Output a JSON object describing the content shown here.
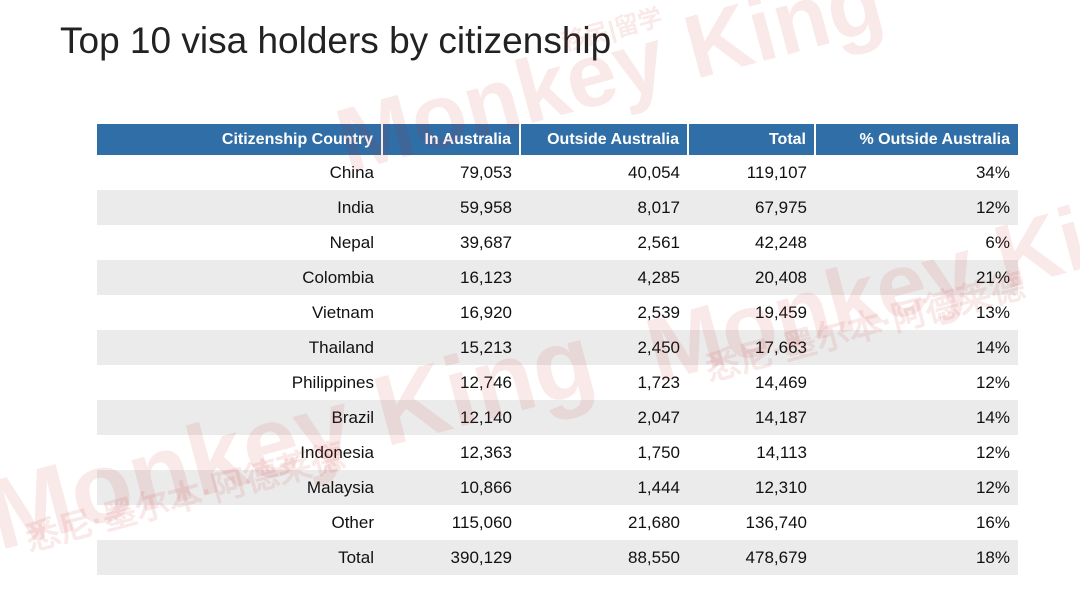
{
  "header": {
    "title": "Top 10 visa holders by citizenship"
  },
  "table": {
    "columns": [
      "Citizenship Country",
      "In Australia",
      "Outside Australia",
      "Total",
      "% Outside Australia"
    ],
    "rows": [
      [
        "China",
        "79,053",
        "40,054",
        "119,107",
        "34%"
      ],
      [
        "India",
        "59,958",
        "8,017",
        "67,975",
        "12%"
      ],
      [
        "Nepal",
        "39,687",
        "2,561",
        "42,248",
        "6%"
      ],
      [
        "Colombia",
        "16,123",
        "4,285",
        "20,408",
        "21%"
      ],
      [
        "Vietnam",
        "16,920",
        "2,539",
        "19,459",
        "13%"
      ],
      [
        "Thailand",
        "15,213",
        "2,450",
        "17,663",
        "14%"
      ],
      [
        "Philippines",
        "12,746",
        "1,723",
        "14,469",
        "12%"
      ],
      [
        "Brazil",
        "12,140",
        "2,047",
        "14,187",
        "14%"
      ],
      [
        "Indonesia",
        "12,363",
        "1,750",
        "14,113",
        "12%"
      ],
      [
        "Malaysia",
        "10,866",
        "1,444",
        "12,310",
        "12%"
      ],
      [
        "Other",
        "115,060",
        "21,680",
        "136,740",
        "16%"
      ],
      [
        "Total",
        "390,129",
        "88,550",
        "478,679",
        "18%"
      ]
    ]
  },
  "watermark": {
    "brand": "Monkey King",
    "tag": "移民|留学",
    "cities": "悉尼·墨尔本·阿德莱德"
  }
}
